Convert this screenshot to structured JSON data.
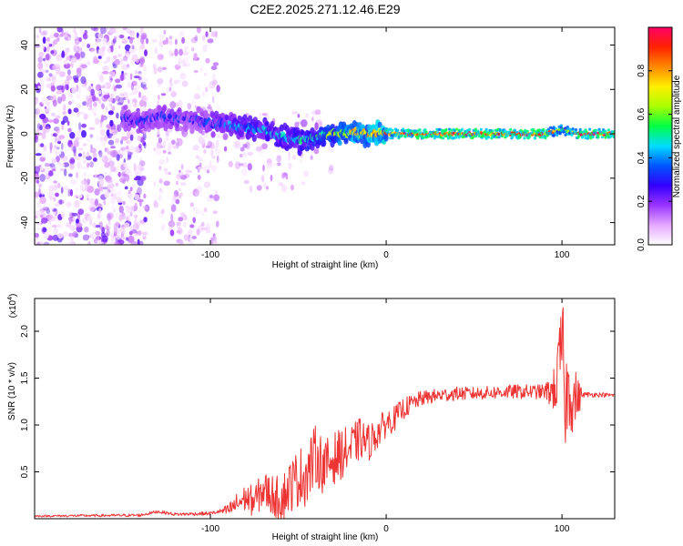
{
  "title": "C2E2.2025.271.12.46.E29",
  "chart_data": [
    {
      "type": "heatmap",
      "title": "C2E2.2025.271.12.46.E29",
      "xlabel": "Height of straight line (km)",
      "ylabel": "Frequency (Hz)",
      "xlim": [
        -200,
        130
      ],
      "ylim": [
        -50,
        48
      ],
      "xticks": [
        -100,
        0,
        100
      ],
      "xtick_labels": [
        "-100",
        "0",
        "100"
      ],
      "yticks": [
        -40,
        -20,
        0,
        20,
        40
      ],
      "ytick_labels": [
        "-40",
        "-20",
        "0",
        "20",
        "40"
      ],
      "colorbar": {
        "label": "Normalized spectral amplitude",
        "range": [
          0,
          1
        ],
        "ticks": [
          0.0,
          0.2,
          0.4,
          0.6,
          0.8
        ],
        "tick_labels": [
          "0.0",
          "0.2",
          "0.4",
          "0.6",
          "0.8"
        ],
        "colors": [
          "#ffffff",
          "#e6a8ff",
          "#9a33ff",
          "#3300ff",
          "#0055ff",
          "#00ddff",
          "#00ff44",
          "#aaff00",
          "#ffee00",
          "#ff8800",
          "#ff2200",
          "#ff0066"
        ]
      },
      "ridge": {
        "x": [
          -150,
          -140,
          -130,
          -120,
          -110,
          -100,
          -90,
          -80,
          -70,
          -60,
          -50,
          -40,
          -30,
          -20,
          -10,
          0,
          10,
          30,
          50,
          70,
          90,
          95,
          100,
          105,
          110,
          130
        ],
        "y": [
          7,
          5,
          8,
          7,
          6,
          5,
          4,
          3,
          2,
          -1,
          -3,
          -2,
          0,
          1,
          0,
          0,
          0,
          0,
          0,
          0,
          0,
          1,
          2,
          1,
          0,
          0
        ],
        "amplitude": [
          0.3,
          0.35,
          0.3,
          0.35,
          0.32,
          0.35,
          0.4,
          0.45,
          0.45,
          0.45,
          0.5,
          0.55,
          0.65,
          0.75,
          0.8,
          0.85,
          0.9,
          0.95,
          0.95,
          0.95,
          0.95,
          0.8,
          0.7,
          0.8,
          0.95,
          0.95
        ]
      },
      "noise_regions": [
        {
          "x_range": [
            -200,
            -136
          ],
          "y_range": [
            -50,
            48
          ],
          "level": 0.25
        },
        {
          "x_range": [
            -132,
            -95
          ],
          "y_range": [
            -50,
            48
          ],
          "level": 0.12
        },
        {
          "x_range": [
            -95,
            -30
          ],
          "y_range": [
            -25,
            10
          ],
          "level": 0.08
        }
      ]
    },
    {
      "type": "line",
      "xlabel": "Height of straight line (km)",
      "ylabel": "SNR (10 * v/v)",
      "y_multiplier_label": "(x10",
      "y_multiplier_exp": "4",
      "y_multiplier_close": ")",
      "xlim": [
        -200,
        130
      ],
      "ylim": [
        0,
        2.35
      ],
      "xticks": [
        -100,
        0,
        100
      ],
      "xtick_labels": [
        "-100",
        "0",
        "100"
      ],
      "yticks": [
        0.5,
        1.0,
        1.5,
        2.0
      ],
      "ytick_labels": [
        "0.5",
        "1.0",
        "1.5",
        "2.0"
      ],
      "line_color": "#ee3333",
      "envelope": {
        "x": [
          -200,
          -140,
          -130,
          -120,
          -100,
          -90,
          -85,
          -80,
          -75,
          -70,
          -65,
          -60,
          -55,
          -50,
          -45,
          -40,
          -35,
          -30,
          -25,
          -20,
          -15,
          -10,
          -5,
          0,
          5,
          10,
          15,
          20,
          30,
          40,
          50,
          60,
          70,
          80,
          90,
          95,
          98,
          100,
          102,
          104,
          106,
          110,
          120,
          130
        ],
        "y": [
          0.03,
          0.04,
          0.08,
          0.05,
          0.06,
          0.1,
          0.18,
          0.25,
          0.22,
          0.35,
          0.3,
          0.25,
          0.4,
          0.5,
          0.55,
          0.75,
          0.6,
          0.7,
          0.75,
          0.8,
          0.9,
          0.85,
          0.95,
          1.05,
          1.1,
          1.2,
          1.25,
          1.3,
          1.33,
          1.35,
          1.35,
          1.36,
          1.37,
          1.37,
          1.37,
          1.4,
          1.6,
          2.0,
          1.35,
          1.5,
          1.35,
          1.33,
          1.33,
          1.32
        ]
      },
      "noise_amplitude": {
        "x": [
          -200,
          -95,
          -85,
          -60,
          -45,
          -35,
          -20,
          0,
          20,
          50,
          90,
          95,
          100,
          108,
          112,
          130
        ],
        "y": [
          0.01,
          0.02,
          0.12,
          0.25,
          0.35,
          0.3,
          0.25,
          0.15,
          0.08,
          0.07,
          0.08,
          0.2,
          0.6,
          0.3,
          0.03,
          0.02
        ]
      }
    }
  ]
}
